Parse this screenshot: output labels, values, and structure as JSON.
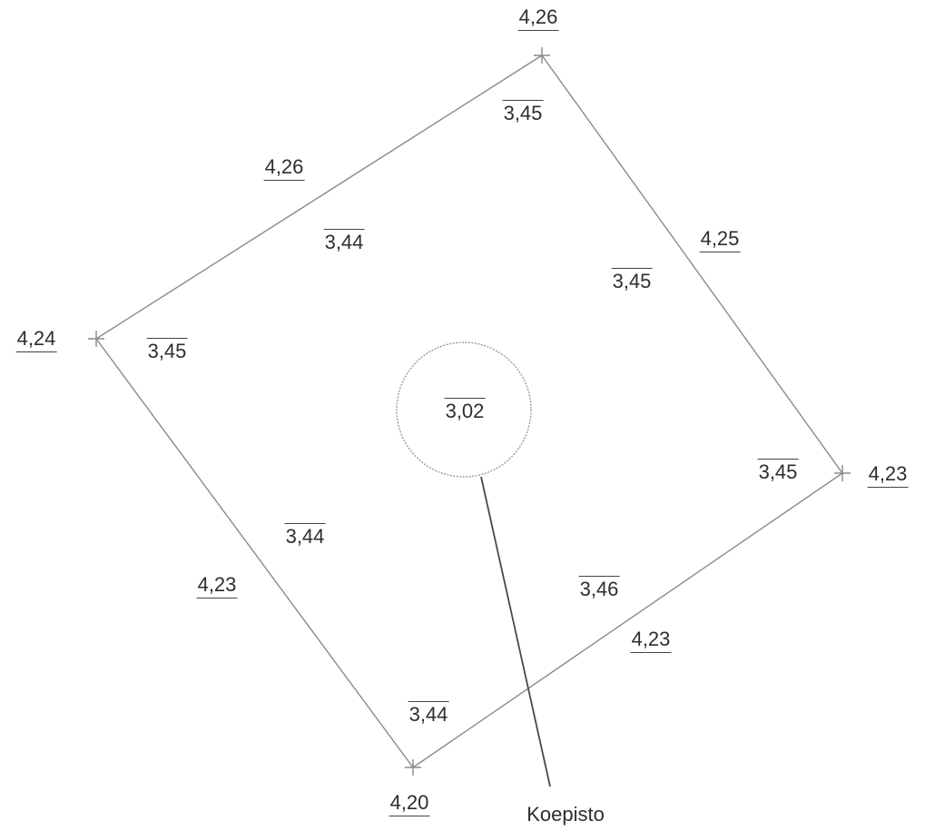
{
  "diagram": {
    "colors": {
      "line": "#8a8a8a",
      "text": "#2e2e2e",
      "pointer": "#4a4a4a"
    },
    "corners": [
      {
        "id": "top",
        "elevation": "4,26",
        "inner": "3,45"
      },
      {
        "id": "right",
        "elevation": "4,23",
        "inner": "3,45"
      },
      {
        "id": "bottom",
        "elevation": "4,20",
        "inner": "3,44"
      },
      {
        "id": "left",
        "elevation": "4,24",
        "inner": "3,45"
      }
    ],
    "edges": [
      {
        "id": "top-left",
        "elevation": "4,26",
        "inner": "3,44"
      },
      {
        "id": "top-right",
        "elevation": "4,25",
        "inner": "3,45"
      },
      {
        "id": "bottom-right",
        "elevation": "4,23",
        "inner": "3,46"
      },
      {
        "id": "bottom-left",
        "elevation": "4,23",
        "inner": "3,44"
      }
    ],
    "pit": {
      "value": "3,02",
      "label": "Koepisto"
    }
  }
}
